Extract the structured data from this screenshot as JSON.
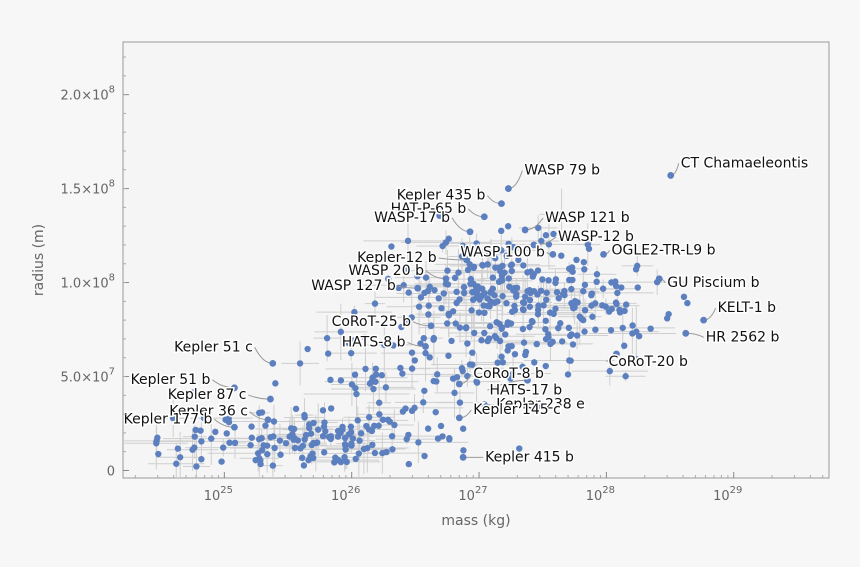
{
  "chart_data": {
    "type": "scatter",
    "xlabel": "mass (kg)",
    "ylabel": "radius (m)",
    "x_scale": "log",
    "xlim": [
      1.6e+24,
      5.6e+29
    ],
    "ylim": [
      -4000000.0,
      228000000.0
    ],
    "grid": false,
    "x_ticks": [
      {
        "value": 1e+25,
        "base": "10",
        "exp": "25"
      },
      {
        "value": 1e+26,
        "base": "10",
        "exp": "26"
      },
      {
        "value": 1e+27,
        "base": "10",
        "exp": "27"
      },
      {
        "value": 1e+28,
        "base": "10",
        "exp": "28"
      },
      {
        "value": 1e+29,
        "base": "10",
        "exp": "29"
      }
    ],
    "y_ticks": [
      {
        "value": 0,
        "mant": "0",
        "exp": ""
      },
      {
        "value": 50000000.0,
        "mant": "5.0×10",
        "exp": "7"
      },
      {
        "value": 100000000.0,
        "mant": "1.0×10",
        "exp": "8"
      },
      {
        "value": 150000000.0,
        "mant": "1.5×10",
        "exp": "8"
      },
      {
        "value": 200000000.0,
        "mant": "2.0×10",
        "exp": "8"
      }
    ],
    "colors": {
      "point": "#5b7fbf",
      "errorbar": "#cfcfcf",
      "leader": "#9a9a9a",
      "frame": "#999999",
      "plot_bg": "#f5f5f5"
    },
    "labeled_points": [
      {
        "name": "CT Chamaeleontis",
        "x": 3.2e+28,
        "y": 157000000.0
      },
      {
        "name": "WASP 79 b",
        "x": 1.7e+27,
        "y": 150000000.0
      },
      {
        "name": "Kepler 435 b",
        "x": 1.5e+27,
        "y": 142000000.0
      },
      {
        "name": "HAT-P-65 b",
        "x": 1.1e+27,
        "y": 135000000.0
      },
      {
        "name": "WASP 121 b",
        "x": 2.3e+27,
        "y": 128000000.0
      },
      {
        "name": "WASP-17 b",
        "x": 8.5e+26,
        "y": 127000000.0
      },
      {
        "name": "WASP-12 b",
        "x": 2.7e+27,
        "y": 120000000.0
      },
      {
        "name": "WASP 100 b",
        "x": 3.8e+27,
        "y": 115000000.0
      },
      {
        "name": "Kepler-12 b",
        "x": 8e+26,
        "y": 112000000.0
      },
      {
        "name": "OGLE2-TR-L9 b",
        "x": 9.5e+27,
        "y": 115000000.0
      },
      {
        "name": "WASP 20 b",
        "x": 5.5e+26,
        "y": 102000000.0
      },
      {
        "name": "GU Piscium b",
        "x": 2.6e+28,
        "y": 102000000.0
      },
      {
        "name": "WASP 127 b",
        "x": 3.3e+26,
        "y": 97000000.0
      },
      {
        "name": "KELT-1 b",
        "x": 5.8e+28,
        "y": 80000000.0
      },
      {
        "name": "CoRoT-25 b",
        "x": 4.2e+26,
        "y": 77000000.0
      },
      {
        "name": "HR 2562 b",
        "x": 4.2e+28,
        "y": 73000000.0
      },
      {
        "name": "HATS-8 b",
        "x": 3.8e+26,
        "y": 66000000.0
      },
      {
        "name": "Kepler 51 c",
        "x": 2.4e+25,
        "y": 57000000.0
      },
      {
        "name": "CoRoT-20 b",
        "x": 1.2e+28,
        "y": 62000000.0
      },
      {
        "name": "HATS-17 b",
        "x": 2.4e+27,
        "y": 48000000.0
      },
      {
        "name": "Kepler 51 b",
        "x": 1.2e+25,
        "y": 44000000.0
      },
      {
        "name": "CoRoT-8 b",
        "x": 7e+26,
        "y": 46000000.0
      },
      {
        "name": "Kepler 87 c",
        "x": 2.3e+25,
        "y": 38000000.0
      },
      {
        "name": "Kepler 238 e",
        "x": 1.1e+27,
        "y": 35000000.0
      },
      {
        "name": "Kepler 36 c",
        "x": 2.2e+25,
        "y": 27000000.0
      },
      {
        "name": "Kepler 145 c",
        "x": 7e+26,
        "y": 28000000.0
      },
      {
        "name": "Kepler 177 b",
        "x": 1.2e+25,
        "y": 23000000.0
      },
      {
        "name": "Kepler 415 b",
        "x": 7.5e+26,
        "y": 7000000.0
      }
    ]
  }
}
